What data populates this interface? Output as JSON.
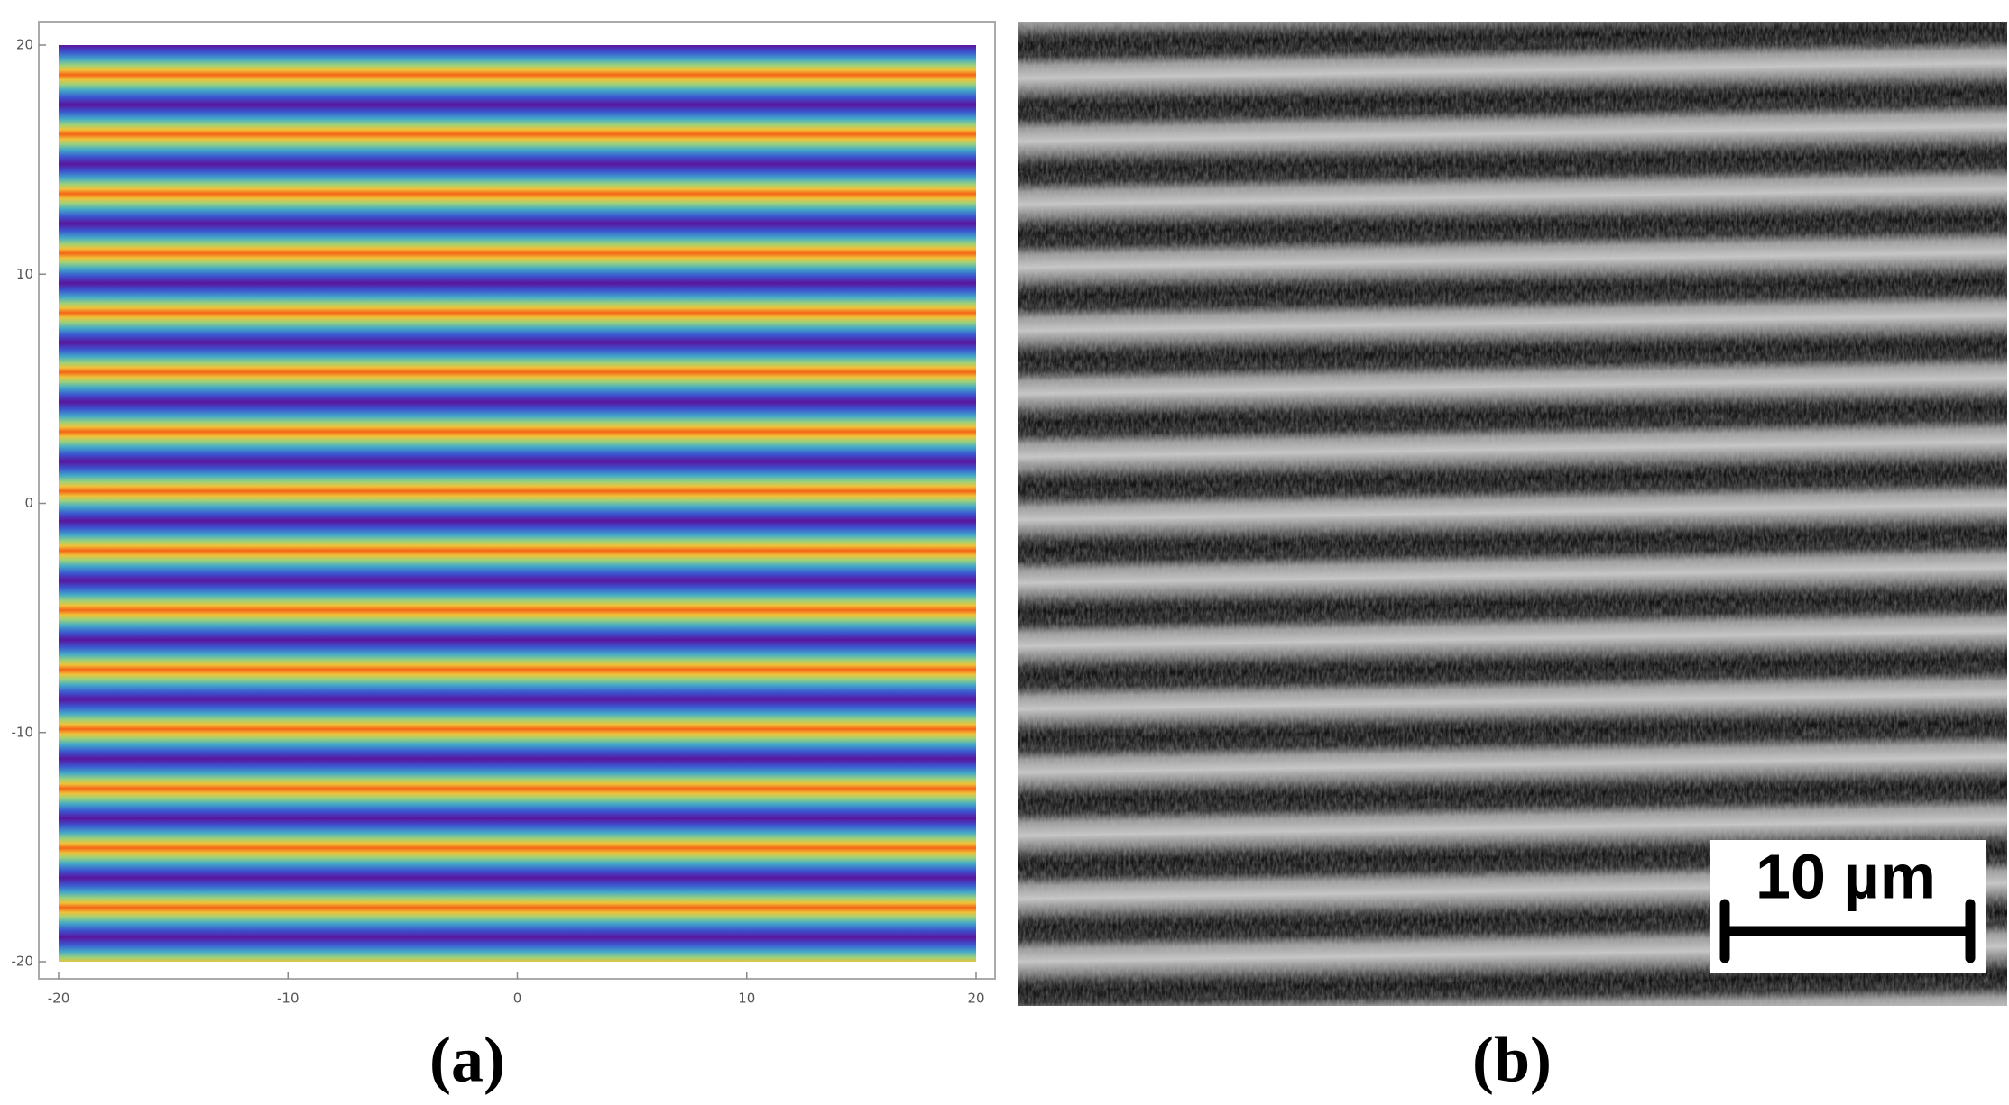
{
  "panels": [
    {
      "label": "(a)",
      "xlim": [
        -20,
        20
      ],
      "ylim": [
        -20,
        20
      ],
      "xticks": [
        -20,
        -10,
        0,
        10,
        20
      ],
      "yticks": [
        -20,
        -10,
        0,
        10,
        20
      ]
    },
    {
      "label": "(b)",
      "scale_bar": "10 µm"
    }
  ]
}
